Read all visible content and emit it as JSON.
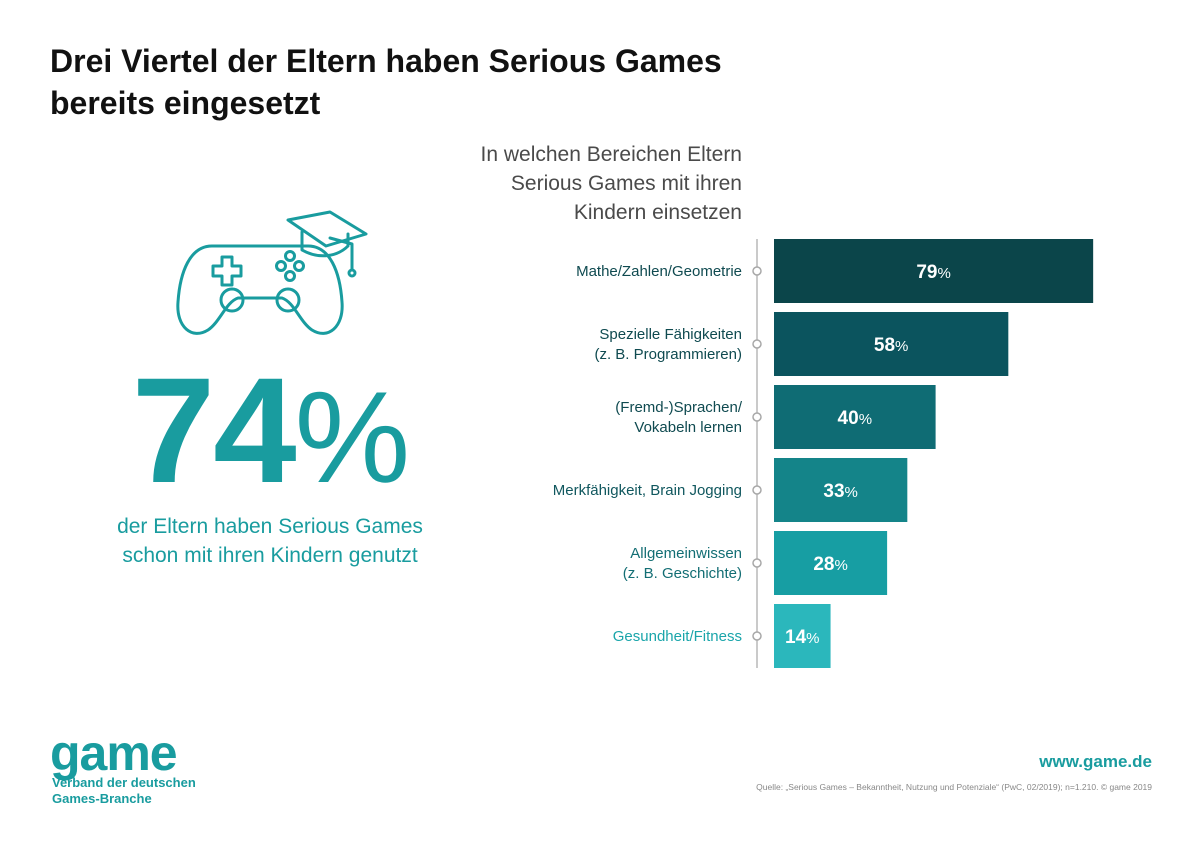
{
  "header": {
    "title_line1": "Drei Viertel der Eltern haben Serious Games",
    "title_line2": "bereits eingesetzt"
  },
  "chart_subtitle": {
    "line1": "In welchen Bereichen Eltern",
    "line2": "Serious Games mit ihren",
    "line3": "Kindern einsetzen"
  },
  "highlight": {
    "value": "74",
    "unit": "%",
    "text_line1": "der Eltern haben Serious Games",
    "text_line2": "schon mit ihren Kindern genutzt",
    "icon": "gamepad-graduation-cap-icon"
  },
  "chart_data": {
    "type": "bar",
    "orientation": "horizontal",
    "unit": "%",
    "xlim": [
      0,
      100
    ],
    "grid": false,
    "categories": [
      [
        "Mathe/Zahlen/Geometrie"
      ],
      [
        "Spezielle Fähigkeiten",
        "(z. B. Programmieren)"
      ],
      [
        "(Fremd-)Sprachen/",
        "Vokabeln lernen"
      ],
      [
        "Merkfähigkeit, Brain Jogging"
      ],
      [
        "Allgemeinwissen",
        "(z. B. Geschichte)"
      ],
      [
        "Gesundheit/Fitness"
      ]
    ],
    "values": [
      79,
      58,
      40,
      33,
      28,
      14
    ],
    "bar_colors": [
      "#0b454a",
      "#0b545e",
      "#0f6c74",
      "#148489",
      "#179ea3",
      "#2bb7bc"
    ],
    "label_colors": [
      "#0f4a50",
      "#0f4a50",
      "#0f4a50",
      "#10575e",
      "#136e74",
      "#1aa5aa"
    ]
  },
  "footer": {
    "logo": "game",
    "logo_sub_line1": "Verband der deutschen",
    "logo_sub_line2": "Games-Branche",
    "website": "www.game.de",
    "source": "Quelle: „Serious Games – Bekanntheit, Nutzung und Potenziale“ (PwC, 02/2019); n=1.210. © game 2019"
  },
  "colors": {
    "accent": "#199c9f",
    "title": "#111111"
  }
}
